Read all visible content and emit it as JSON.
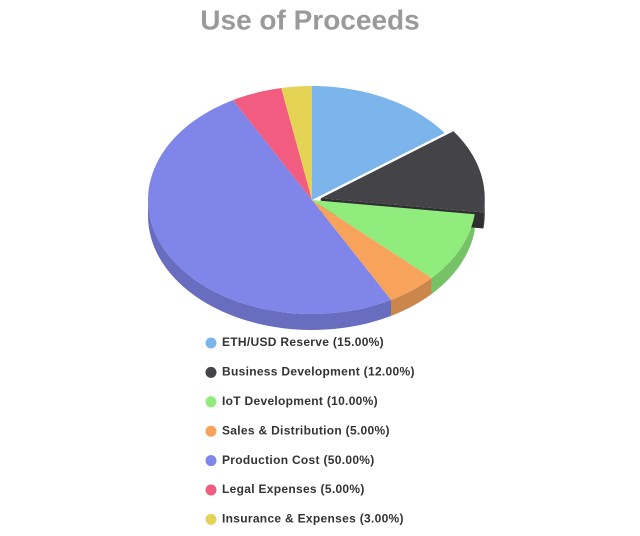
{
  "chart_data": {
    "type": "pie",
    "title": "Use of Proceeds",
    "categories": [
      "ETH/USD Reserve (15.00%)",
      "Business Development (12.00%)",
      "IoT Development (10.00%)",
      "Sales & Distribution (5.00%)",
      "Production Cost (50.00%)",
      "Legal Expenses (5.00%)",
      "Insurance & Expenses (3.00%)"
    ],
    "values": [
      15,
      12,
      10,
      5,
      50,
      5,
      3
    ],
    "colors": [
      "#7cb5ec",
      "#434348",
      "#90ed7d",
      "#f7a35c",
      "#8085e9",
      "#f15c80",
      "#e4d354"
    ]
  }
}
